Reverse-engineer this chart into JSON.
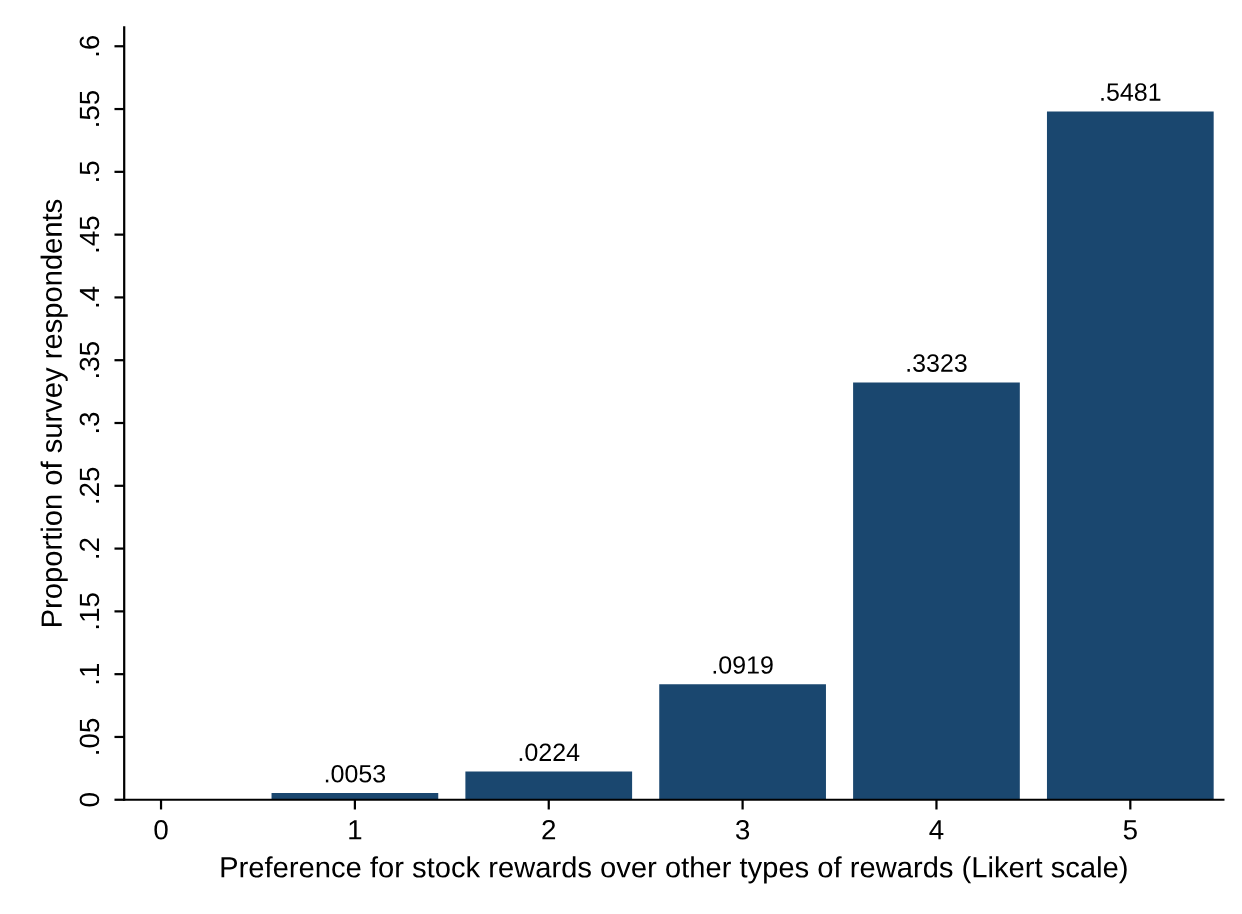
{
  "chart_data": {
    "type": "bar",
    "xlabel": "Preference for stock rewards over other types of rewards (Likert scale)",
    "ylabel": "Proportion of survey respondents",
    "x": [
      1,
      2,
      3,
      4,
      5
    ],
    "values": [
      0.0053,
      0.0224,
      0.0919,
      0.3323,
      0.5481
    ],
    "value_labels": [
      ".0053",
      ".0224",
      ".0919",
      ".3323",
      ".5481"
    ],
    "color": "#1a476f",
    "xlim": [
      -0.19,
      5.48
    ],
    "xticks": [
      0,
      1,
      2,
      3,
      4,
      5
    ],
    "ylim": [
      0,
      0.615
    ],
    "yticks": [
      0,
      {
        "value": 0.05,
        "label": ".05"
      },
      {
        "value": 0.1,
        "label": ".1"
      },
      {
        "value": 0.15,
        "label": ".15"
      },
      {
        "value": 0.2,
        "label": ".2"
      },
      {
        "value": 0.25,
        "label": ".25"
      },
      {
        "value": 0.3,
        "label": ".3"
      },
      {
        "value": 0.35,
        "label": ".35"
      },
      {
        "value": 0.4,
        "label": ".4"
      },
      {
        "value": 0.45,
        "label": ".45"
      },
      {
        "value": 0.5,
        "label": ".5"
      },
      {
        "value": 0.55,
        "label": ".55"
      },
      {
        "value": 0.6,
        "label": ".6"
      }
    ],
    "grid": false,
    "legend": false
  }
}
